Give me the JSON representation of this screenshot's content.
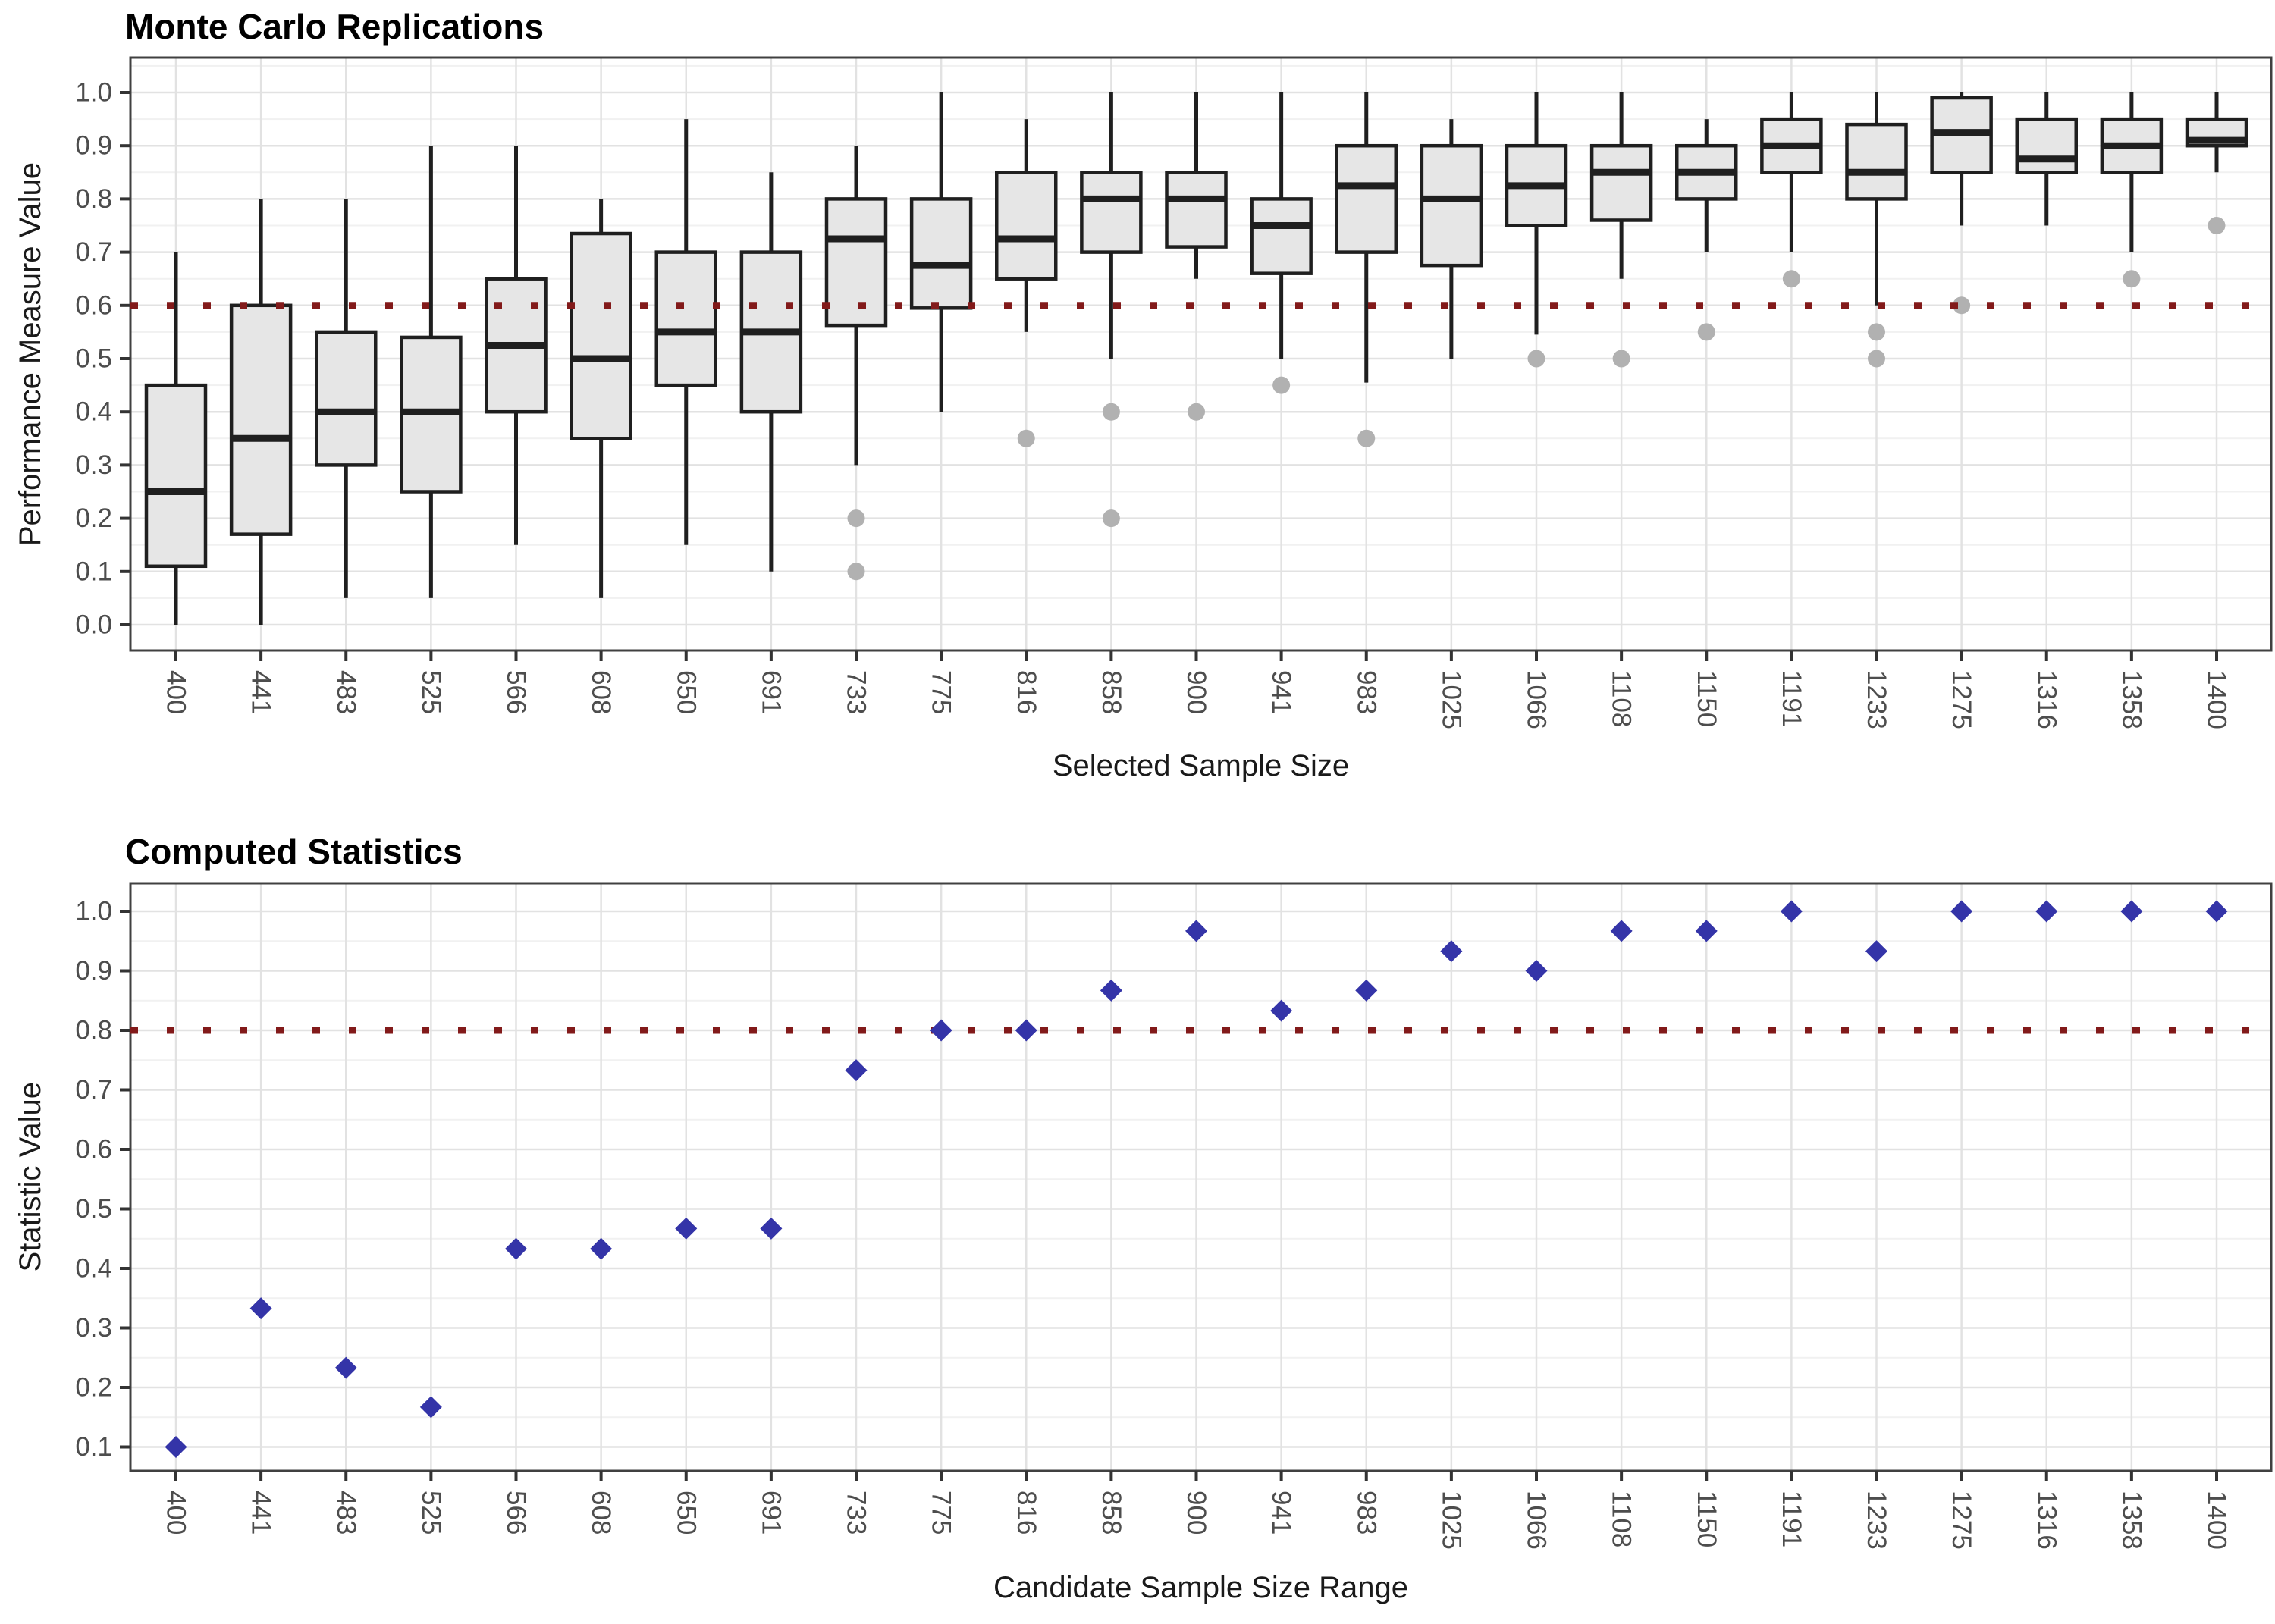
{
  "colors": {
    "box_fill": "#E6E6E6",
    "box_stroke": "#1F1F1F",
    "outlier_gray": "#B1B1B1",
    "reference_line_red": "#821A1A",
    "diamond_blue": "#3434A8",
    "grid_major": "#E2E2E2",
    "grid_minor": "#F1F1F1",
    "panel_border": "#404040",
    "tick_mark": "#333333",
    "tick_label": "#4D4D4D"
  },
  "chart_data": [
    {
      "type": "boxplot",
      "title": "Monte Carlo Replications",
      "xlabel": "Selected Sample Size",
      "ylabel": "Performance Measure Value",
      "ylim": [
        0.0,
        1.0
      ],
      "grid": "on",
      "reference_line_y": 0.6,
      "y_tick_labels": [
        "0.0",
        "0.1",
        "0.2",
        "0.3",
        "0.4",
        "0.5",
        "0.6",
        "0.7",
        "0.8",
        "0.9",
        "1.0"
      ],
      "y_tick_values": [
        0.0,
        0.1,
        0.2,
        0.3,
        0.4,
        0.5,
        0.6,
        0.7,
        0.8,
        0.9,
        1.0
      ],
      "categories": [
        "400",
        "441",
        "483",
        "525",
        "566",
        "608",
        "650",
        "691",
        "733",
        "775",
        "816",
        "858",
        "900",
        "941",
        "983",
        "1025",
        "1066",
        "1108",
        "1150",
        "1191",
        "1233",
        "1275",
        "1316",
        "1358",
        "1400"
      ],
      "stats": [
        {
          "whislo": 0.0,
          "q1": 0.11,
          "med": 0.25,
          "q3": 0.45,
          "whishi": 0.7,
          "outliers": []
        },
        {
          "whislo": 0.0,
          "q1": 0.17,
          "med": 0.35,
          "q3": 0.6,
          "whishi": 0.8,
          "outliers": []
        },
        {
          "whislo": 0.05,
          "q1": 0.3,
          "med": 0.4,
          "q3": 0.55,
          "whishi": 0.8,
          "outliers": []
        },
        {
          "whislo": 0.05,
          "q1": 0.25,
          "med": 0.4,
          "q3": 0.54,
          "whishi": 0.9,
          "outliers": []
        },
        {
          "whislo": 0.15,
          "q1": 0.4,
          "med": 0.525,
          "q3": 0.65,
          "whishi": 0.9,
          "outliers": []
        },
        {
          "whislo": 0.05,
          "q1": 0.35,
          "med": 0.5,
          "q3": 0.735,
          "whishi": 0.8,
          "outliers": []
        },
        {
          "whislo": 0.15,
          "q1": 0.45,
          "med": 0.55,
          "q3": 0.7,
          "whishi": 0.95,
          "outliers": []
        },
        {
          "whislo": 0.1,
          "q1": 0.4,
          "med": 0.55,
          "q3": 0.7,
          "whishi": 0.85,
          "outliers": []
        },
        {
          "whislo": 0.3,
          "q1": 0.5625,
          "med": 0.725,
          "q3": 0.8,
          "whishi": 0.9,
          "outliers": [
            0.2,
            0.1
          ]
        },
        {
          "whislo": 0.4,
          "q1": 0.595,
          "med": 0.675,
          "q3": 0.8,
          "whishi": 1.0,
          "outliers": []
        },
        {
          "whislo": 0.55,
          "q1": 0.65,
          "med": 0.725,
          "q3": 0.85,
          "whishi": 0.95,
          "outliers": [
            0.35
          ]
        },
        {
          "whislo": 0.5,
          "q1": 0.7,
          "med": 0.8,
          "q3": 0.85,
          "whishi": 1.0,
          "outliers": [
            0.4,
            0.2
          ]
        },
        {
          "whislo": 0.65,
          "q1": 0.71,
          "med": 0.8,
          "q3": 0.85,
          "whishi": 1.0,
          "outliers": [
            0.4
          ]
        },
        {
          "whislo": 0.5,
          "q1": 0.66,
          "med": 0.75,
          "q3": 0.8,
          "whishi": 1.0,
          "outliers": [
            0.45
          ]
        },
        {
          "whislo": 0.455,
          "q1": 0.7,
          "med": 0.825,
          "q3": 0.9,
          "whishi": 1.0,
          "outliers": [
            0.35
          ]
        },
        {
          "whislo": 0.5,
          "q1": 0.675,
          "med": 0.8,
          "q3": 0.9,
          "whishi": 0.95,
          "outliers": []
        },
        {
          "whislo": 0.545,
          "q1": 0.75,
          "med": 0.825,
          "q3": 0.9,
          "whishi": 1.0,
          "outliers": [
            0.5
          ]
        },
        {
          "whislo": 0.65,
          "q1": 0.76,
          "med": 0.85,
          "q3": 0.9,
          "whishi": 1.0,
          "outliers": [
            0.5
          ]
        },
        {
          "whislo": 0.7,
          "q1": 0.8,
          "med": 0.85,
          "q3": 0.9,
          "whishi": 0.95,
          "outliers": [
            0.55
          ]
        },
        {
          "whislo": 0.7,
          "q1": 0.85,
          "med": 0.9,
          "q3": 0.95,
          "whishi": 1.0,
          "outliers": [
            0.65
          ]
        },
        {
          "whislo": 0.6,
          "q1": 0.8,
          "med": 0.85,
          "q3": 0.94,
          "whishi": 1.0,
          "outliers": [
            0.55,
            0.5
          ]
        },
        {
          "whislo": 0.75,
          "q1": 0.85,
          "med": 0.925,
          "q3": 0.99,
          "whishi": 1.0,
          "outliers": [
            0.6
          ]
        },
        {
          "whislo": 0.75,
          "q1": 0.85,
          "med": 0.875,
          "q3": 0.95,
          "whishi": 1.0,
          "outliers": []
        },
        {
          "whislo": 0.7,
          "q1": 0.85,
          "med": 0.9,
          "q3": 0.95,
          "whishi": 1.0,
          "outliers": [
            0.65
          ]
        },
        {
          "whislo": 0.85,
          "q1": 0.9,
          "med": 0.91,
          "q3": 0.95,
          "whishi": 1.0,
          "outliers": [
            0.75
          ]
        }
      ]
    },
    {
      "type": "scatter",
      "title": "Computed Statistics",
      "xlabel": "Candidate Sample Size Range",
      "ylabel": "Statistic Value",
      "ylim": [
        0.06,
        1.05
      ],
      "grid": "on",
      "marker": "diamond",
      "reference_line_y": 0.8,
      "y_tick_labels": [
        "0.1",
        "0.2",
        "0.3",
        "0.4",
        "0.5",
        "0.6",
        "0.7",
        "0.8",
        "0.9",
        "1.0"
      ],
      "y_tick_values": [
        0.1,
        0.2,
        0.3,
        0.4,
        0.5,
        0.6,
        0.7,
        0.8,
        0.9,
        1.0
      ],
      "categories": [
        "400",
        "441",
        "483",
        "525",
        "566",
        "608",
        "650",
        "691",
        "733",
        "775",
        "816",
        "858",
        "900",
        "941",
        "983",
        "1025",
        "1066",
        "1108",
        "1150",
        "1191",
        "1233",
        "1275",
        "1316",
        "1358",
        "1400"
      ],
      "values": [
        0.1,
        0.333,
        0.233,
        0.167,
        0.433,
        0.433,
        0.467,
        0.467,
        0.733,
        0.8,
        0.8,
        0.867,
        0.967,
        0.833,
        0.867,
        0.933,
        0.9,
        0.967,
        0.967,
        1.0,
        0.933,
        1.0,
        1.0,
        1.0,
        1.0
      ]
    }
  ]
}
